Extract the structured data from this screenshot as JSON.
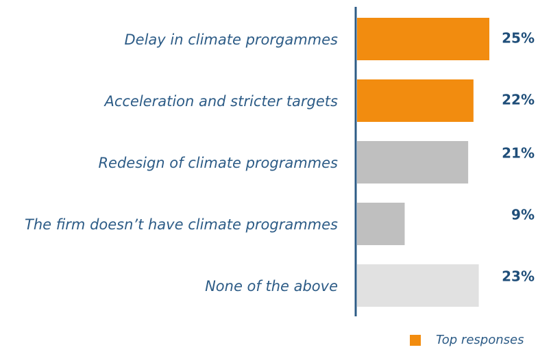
{
  "chart_data": {
    "type": "bar",
    "orientation": "horizontal",
    "categories": [
      "Delay in climate prorgammes",
      "Acceleration and stricter targets",
      "Redesign of climate programmes",
      "The firm doesn’t have climate programmes",
      "None of the above"
    ],
    "values": [
      25,
      22,
      21,
      9,
      23
    ],
    "value_labels": [
      "25%",
      "22%",
      "21%",
      "9%",
      "23%"
    ],
    "colors": [
      "#f28c0f",
      "#f28c0f",
      "#bfbfbf",
      "#bfbfbf",
      "#e1e1e1"
    ],
    "legend": {
      "label": "Top responses",
      "color": "#f28c0f"
    }
  }
}
